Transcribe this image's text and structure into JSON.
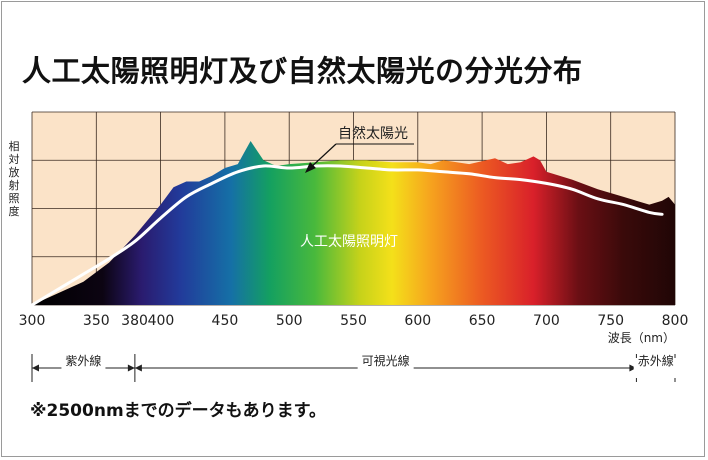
{
  "title": "人工太陽照明灯及び自然太陽光の分光分布",
  "note": "※2500nmまでのデータもあります。",
  "colors": {
    "plot_background": "#fbe3c8",
    "grid": "#3a2a20",
    "natural_curve": "#ffffff"
  },
  "chart_data": {
    "type": "area",
    "title": "人工太陽照明灯及び自然太陽光の分光分布",
    "ylabel": "相対放射照度",
    "xlabel": "波長（nm）",
    "xlim": [
      300,
      800
    ],
    "ylim": [
      0,
      100
    ],
    "x_ticks": [
      "300",
      "350",
      "380",
      "400",
      "450",
      "500",
      "550",
      "600",
      "650",
      "700",
      "750",
      "800"
    ],
    "y_ticks": [
      0,
      25,
      50,
      75
    ],
    "grid": true,
    "series": [
      {
        "name": "人工太陽照明灯",
        "fill": "visible spectrum gradient",
        "x": [
          300,
          320,
          340,
          360,
          380,
          400,
          410,
          420,
          430,
          440,
          450,
          460,
          465,
          470,
          480,
          490,
          500,
          520,
          540,
          560,
          580,
          600,
          610,
          620,
          640,
          660,
          670,
          680,
          690,
          695,
          700,
          720,
          740,
          760,
          780,
          790,
          795,
          800
        ],
        "y": [
          0,
          6,
          12,
          22,
          36,
          52,
          61,
          64,
          64,
          67,
          71,
          73,
          79,
          85,
          75,
          72,
          73,
          74,
          75,
          75,
          74,
          74,
          73,
          75,
          73,
          76,
          73,
          74,
          77,
          75,
          69,
          65,
          60,
          56,
          52,
          54,
          56,
          52
        ]
      },
      {
        "name": "自然太陽光",
        "x": [
          300,
          320,
          340,
          360,
          380,
          400,
          420,
          440,
          460,
          480,
          500,
          520,
          540,
          560,
          580,
          600,
          620,
          640,
          660,
          680,
          700,
          720,
          740,
          760,
          780,
          790
        ],
        "y": [
          0,
          8,
          16,
          24,
          33,
          45,
          56,
          63,
          69,
          72,
          71,
          72,
          72,
          71,
          70,
          70,
          69,
          68,
          66,
          65,
          63,
          60,
          55,
          52,
          48,
          47
        ]
      }
    ],
    "annotations": [
      {
        "text": "自然太陽光",
        "target_series": "自然太陽光"
      },
      {
        "text": "人工太陽照明灯",
        "target_series": "人工太陽照明灯"
      }
    ],
    "bands": [
      {
        "label": "紫外線",
        "range": [
          300,
          380
        ]
      },
      {
        "label": "可視光線",
        "range": [
          380,
          770
        ]
      },
      {
        "label": "赤外線",
        "range": [
          770,
          800
        ]
      }
    ]
  }
}
